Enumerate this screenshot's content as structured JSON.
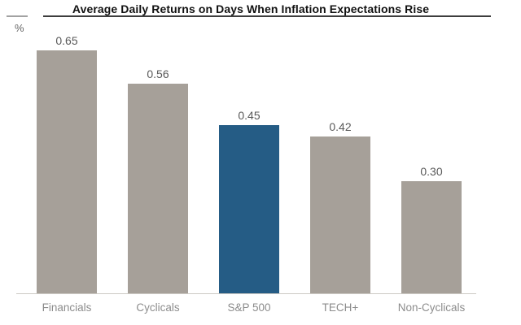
{
  "header": {
    "title": "Average Daily Returns on Days When Inflation Expectations Rise",
    "unit_label": "%"
  },
  "chart_data": {
    "type": "bar",
    "title": "Average Daily Returns on Days When Inflation Expectations Rise",
    "ylabel": "%",
    "categories": [
      "Financials",
      "Cyclicals",
      "S&P 500",
      "TECH+",
      "Non-Cyclicals"
    ],
    "values": [
      0.65,
      0.56,
      0.45,
      0.42,
      0.3
    ],
    "value_labels": [
      "0.65",
      "0.56",
      "0.45",
      "0.42",
      "0.30"
    ],
    "highlight_category": "S&P 500",
    "bar_color": "#a6a099",
    "highlight_color": "#255c85",
    "value_label_color": "#595959",
    "axis_label_color": "#8c8c8c",
    "ylim": [
      0,
      0.7
    ],
    "grid": false,
    "legend": false
  }
}
